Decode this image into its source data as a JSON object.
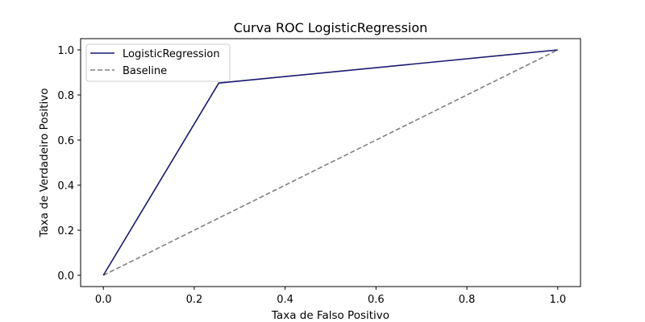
{
  "chart_data": {
    "type": "line",
    "title": "Curva ROC LogisticRegression",
    "xlabel": "Taxa de Falso Positivo",
    "ylabel": "Taxa de Verdadeiro Positivo",
    "xlim": [
      -0.05,
      1.05
    ],
    "ylim": [
      -0.05,
      1.05
    ],
    "xticks": [
      0.0,
      0.2,
      0.4,
      0.6,
      0.8,
      1.0
    ],
    "yticks": [
      0.0,
      0.2,
      0.4,
      0.6,
      0.8,
      1.0
    ],
    "xtick_labels": [
      "0.0",
      "0.2",
      "0.4",
      "0.6",
      "0.8",
      "1.0"
    ],
    "ytick_labels": [
      "0.0",
      "0.2",
      "0.4",
      "0.6",
      "0.8",
      "1.0"
    ],
    "grid": false,
    "legend_position": "top-left",
    "series": [
      {
        "name": "LogisticRegression",
        "x": [
          0.0,
          0.254,
          1.0
        ],
        "y": [
          0.0,
          0.853,
          1.0
        ],
        "color": "#191970",
        "style": "solid"
      },
      {
        "name": "Baseline",
        "x": [
          0.0,
          1.0
        ],
        "y": [
          0.0,
          1.0
        ],
        "color": "#808080",
        "style": "dashed"
      }
    ]
  }
}
